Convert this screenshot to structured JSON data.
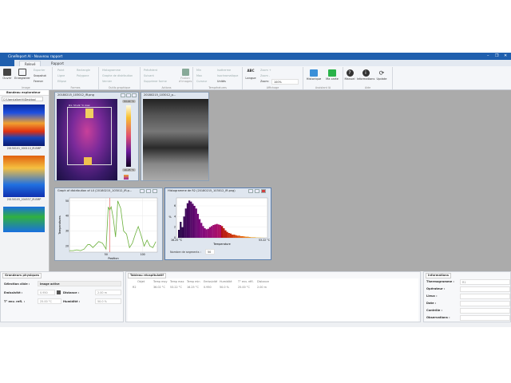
{
  "window": {
    "title": "CineReport AI - Nouveau rapport",
    "minimize": "–",
    "restore": "❐",
    "close": "✕"
  },
  "tabs": [
    {
      "label": "Relevé",
      "active": true
    },
    {
      "label": "Rapport",
      "active": false
    }
  ],
  "ribbon": {
    "image": {
      "label": "Image",
      "open": "Ouvrir",
      "save": "Enregistrer",
      "export": "Exporter",
      "snapshot": "Snapshot",
      "close": "Fermer"
    },
    "formes": {
      "label": "Formes",
      "point": "Point",
      "ligne": "Ligne",
      "ellipse": "Ellipse",
      "rectangle": "Rectangle",
      "polygone": "Polygone"
    },
    "outils": {
      "label": "Outils graphique",
      "histogramme": "Histogramme",
      "graphe": "Graphe de distribution",
      "vernier": "Vernier"
    },
    "actions": {
      "label": "Actions",
      "precedent": "Précédent",
      "suivant": "Suivant",
      "supprimer": "Supprimer forme",
      "fusion": "Fusion d'images"
    },
    "temperatures": {
      "label": "Températures",
      "min": "Min",
      "max": "Max",
      "curseur": "Curseur",
      "isotherme": "Isotherme",
      "isochromatique": "Isochromatique",
      "unites": "Unités"
    },
    "affichage": {
      "label": "Affichage",
      "langue": "Langue",
      "zoom_in": "Zoom +",
      "zoom_out": "Zoom -",
      "zoom_label": "Zoom:",
      "zoom_value": "100%"
    },
    "ia": {
      "label": "Assistant IA",
      "historique": "Historique",
      "ma_carte": "Ma carte"
    },
    "aide": {
      "label": "Aide",
      "manuel": "Manuel",
      "informations": "Informations",
      "update": "Update"
    }
  },
  "explorer": {
    "title": "Bandeau explorateur",
    "path": "C:\\Users\\alberth\\Desktop\\",
    "thumbs": [
      "20150101_000110_IR.BMP",
      "20150105_204537_IR.BMP"
    ]
  },
  "ir_window": {
    "title": "20180215_103012_IR.png",
    "max": "53.22 °C",
    "min": "16.25 °C",
    "roi": "R1: 53.22 °C max"
  },
  "photo_window": {
    "title": "20180215_103012_p..."
  },
  "graph_window": {
    "title": "Graph of distribution of L0 (20180215_103012_IR.p...",
    "xlabel": "Position",
    "ylabel": "Temperatures",
    "xticks": [
      50,
      100
    ],
    "yticks": [
      20,
      30,
      40,
      50
    ],
    "xlim": [
      0,
      120
    ],
    "ylim": [
      16,
      52
    ],
    "x": [
      0,
      5,
      10,
      15,
      20,
      25,
      28,
      32,
      36,
      40,
      45,
      50,
      53,
      55,
      57,
      60,
      63,
      66,
      70,
      74,
      78,
      82,
      86,
      90,
      94,
      98,
      102,
      106,
      110,
      114,
      118
    ],
    "y": [
      17,
      17,
      17.5,
      17,
      18,
      21,
      21,
      19,
      21,
      23,
      22,
      18,
      46,
      44,
      46,
      38,
      26,
      50,
      45,
      30,
      28,
      19,
      22,
      28,
      33,
      27,
      20,
      24,
      20,
      19,
      23
    ]
  },
  "hist_window": {
    "title": "Histogramme de R2 (20180215_103012_IR.png)",
    "xlabel": "Temperature",
    "ylabel": "%",
    "xmin_label": "16.25 °C",
    "xmax_label": "53.22 °C",
    "yticks": [
      0,
      2,
      4,
      6
    ],
    "segments_label": "Nombre de segments :",
    "segments": "50",
    "values": [
      1.5,
      3,
      2,
      4,
      5.5,
      6.5,
      7,
      6.8,
      6.4,
      6,
      5.5,
      4.5,
      3.5,
      2.8,
      2.2,
      1.8,
      1.6,
      1.7,
      2,
      2.2,
      2.4,
      2.5,
      2.6,
      2.5,
      2.4,
      2.2,
      1.8,
      1.4,
      1.1,
      0.9,
      0.8,
      0.6,
      0.6,
      0.5,
      0.4,
      0.4,
      0.3,
      0.3,
      0.25,
      0.2,
      0.2,
      0.15,
      0.1,
      0.1,
      0.1,
      0.05,
      0.05,
      0.05,
      0.02,
      0.02
    ]
  },
  "physique": {
    "title": "Grandeurs physiques",
    "selection_label": "Sélection cible :",
    "selection_value": "Image active",
    "emissivite_label": "Emissivité :",
    "emissivite_value": "0.950",
    "distance_label": "Distance :",
    "distance_value": "2.00 m",
    "temp_label": "T° env. refl. :",
    "temp_value": "25.00 °C",
    "humidite_label": "Humidité :",
    "humidite_value": "50.0 %"
  },
  "tableau": {
    "title": "Tableau récapitulatif",
    "headers": [
      "Objet",
      "Temp moy",
      "Temp max",
      "Temp min",
      "Emissivité",
      "Humidité",
      "T° env. réfl.",
      "Distance"
    ],
    "rows": [
      [
        "R2",
        "36.02 °C",
        "53.22 °C",
        "16.25 °C",
        "0.950",
        "50.0 %",
        "25.00 °C",
        "2.00 m"
      ]
    ]
  },
  "informations": {
    "title": "Informations",
    "fields": [
      {
        "label": "Thermogramme :",
        "value": "R1"
      },
      {
        "label": "Opérateur :",
        "value": ""
      },
      {
        "label": "Lieux :",
        "value": ""
      },
      {
        "label": "Date :",
        "value": ""
      },
      {
        "label": "Contrôle :",
        "value": ""
      },
      {
        "label": "Observations :",
        "value": ""
      }
    ]
  },
  "colors": {
    "accent": "#1f5fae",
    "workspace": "#ababab",
    "curve": "#6ab03a",
    "cursor": "#e05050"
  }
}
